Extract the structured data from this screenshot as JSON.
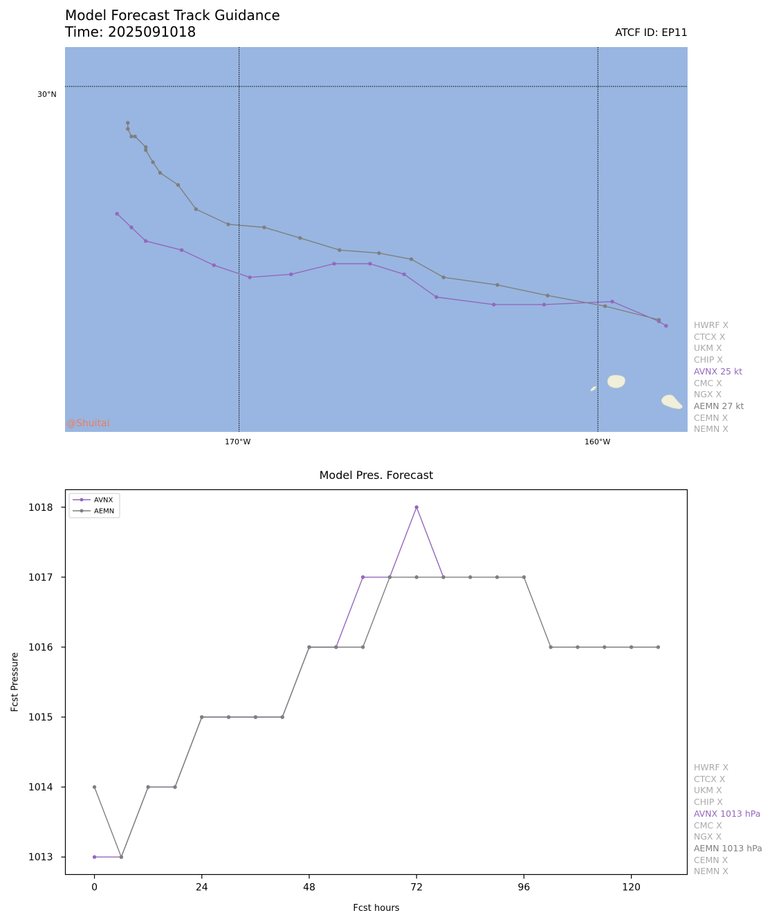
{
  "header": {
    "title": "Model Forecast Track Guidance",
    "time_line": "Time: 2025091018",
    "atcf_id": "ATCF ID: EP11"
  },
  "map": {
    "lat_labels": [
      "30°N"
    ],
    "lon_labels": [
      "170°W",
      "160°W"
    ],
    "watermark": "@Shuitai",
    "ocean_color": "#98b6e1",
    "land_color": "#efefdb"
  },
  "track_legend": [
    {
      "text": "HWRF X",
      "color": "#aaaaaa"
    },
    {
      "text": "CTCX X",
      "color": "#aaaaaa"
    },
    {
      "text": "UKM X",
      "color": "#aaaaaa"
    },
    {
      "text": "CHIP X",
      "color": "#aaaaaa"
    },
    {
      "text": "AVNX 25 kt",
      "color": "#9467bd"
    },
    {
      "text": "CMC X",
      "color": "#aaaaaa"
    },
    {
      "text": "NGX X",
      "color": "#aaaaaa"
    },
    {
      "text": "AEMN 27 kt",
      "color": "#7f7f7f"
    },
    {
      "text": "CEMN X",
      "color": "#aaaaaa"
    },
    {
      "text": "NEMN X",
      "color": "#aaaaaa"
    }
  ],
  "pres_legend": [
    {
      "text": "HWRF X",
      "color": "#aaaaaa"
    },
    {
      "text": "CTCX X",
      "color": "#aaaaaa"
    },
    {
      "text": "UKM X",
      "color": "#aaaaaa"
    },
    {
      "text": "CHIP X",
      "color": "#aaaaaa"
    },
    {
      "text": "AVNX 1013 hPa",
      "color": "#9467bd"
    },
    {
      "text": "CMC X",
      "color": "#aaaaaa"
    },
    {
      "text": "NGX X",
      "color": "#aaaaaa"
    },
    {
      "text": "AEMN 1013 hPa",
      "color": "#7f7f7f"
    },
    {
      "text": "CEMN X",
      "color": "#aaaaaa"
    },
    {
      "text": "NEMN X",
      "color": "#aaaaaa"
    }
  ],
  "chart_data": [
    {
      "type": "line",
      "title": "Model Forecast Track Guidance",
      "xlabel": "",
      "ylabel": "",
      "x_range_lon": [
        -174.85,
        -157.5
      ],
      "y_range_lat": [
        18.6,
        31.3
      ],
      "grid": true,
      "series": [
        {
          "name": "AVNX",
          "color": "#9467bd",
          "lon": [
            -158.1,
            -158.3,
            -159.6,
            -161.5,
            -162.9,
            -164.5,
            -165.4,
            -166.35,
            -167.35,
            -168.55,
            -169.7,
            -170.7,
            -171.6,
            -172.6,
            -173.0,
            -173.4
          ],
          "lat": [
            22.1,
            22.25,
            22.9,
            22.8,
            22.8,
            23.05,
            23.8,
            24.15,
            24.15,
            23.8,
            23.7,
            24.1,
            24.6,
            24.9,
            25.35,
            25.8
          ]
        },
        {
          "name": "AEMN",
          "color": "#7f7f7f",
          "lon": [
            -158.3,
            -159.8,
            -161.4,
            -162.8,
            -164.3,
            -165.2,
            -166.1,
            -167.2,
            -168.3,
            -169.3,
            -170.3,
            -171.2,
            -171.7,
            -172.2,
            -172.4,
            -172.6,
            -172.6,
            -172.9,
            -173.0,
            -173.1,
            -173.1
          ],
          "lat": [
            22.3,
            22.75,
            23.1,
            23.45,
            23.7,
            24.3,
            24.5,
            24.6,
            25.0,
            25.35,
            25.45,
            25.95,
            26.75,
            27.15,
            27.5,
            27.9,
            28.0,
            28.35,
            28.35,
            28.6,
            28.8
          ]
        }
      ]
    },
    {
      "type": "line",
      "title": "Model Pres. Forecast",
      "xlabel": "Fcst hours",
      "ylabel": "Fcst Pressure",
      "xlim": [
        -6.5,
        132.5
      ],
      "ylim": [
        1012.75,
        1018.25
      ],
      "x_ticks": [
        0,
        24,
        48,
        72,
        96,
        120
      ],
      "y_ticks": [
        1013,
        1014,
        1015,
        1016,
        1017,
        1018
      ],
      "legend_position": "upper-left",
      "series": [
        {
          "name": "AVNX",
          "color": "#9467bd",
          "x": [
            0,
            6,
            12,
            18,
            24,
            30,
            36,
            42,
            48,
            54,
            60,
            66,
            72,
            78
          ],
          "values": [
            1013,
            1013,
            1014,
            1014,
            1015,
            1015,
            1015,
            1015,
            1016,
            1016,
            1017,
            1017,
            1018,
            1017
          ]
        },
        {
          "name": "AEMN",
          "color": "#7f7f7f",
          "x": [
            0,
            6,
            12,
            18,
            24,
            30,
            36,
            42,
            48,
            54,
            60,
            66,
            72,
            78,
            84,
            90,
            96,
            102,
            108,
            114,
            120,
            126
          ],
          "values": [
            1014,
            1013,
            1014,
            1014,
            1015,
            1015,
            1015,
            1015,
            1016,
            1016,
            1016,
            1017,
            1017,
            1017,
            1017,
            1017,
            1017,
            1016,
            1016,
            1016,
            1016,
            1016
          ]
        }
      ]
    }
  ]
}
